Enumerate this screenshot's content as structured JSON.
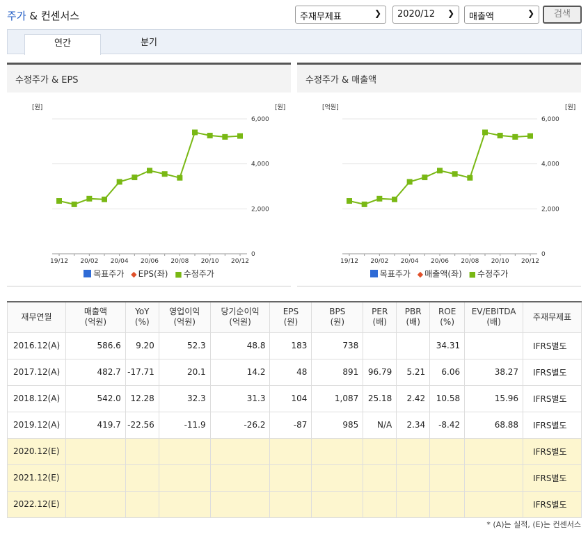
{
  "header": {
    "title_a": "주가",
    "title_b": " & 컨센서스",
    "select_type": "주재무제표",
    "select_period": "2020/12",
    "select_metric": "매출액",
    "search_label": "검색"
  },
  "tabs": [
    "연간",
    "분기"
  ],
  "colors": {
    "accent": "#1f5bc4",
    "target_price": "#2f6bd6",
    "eps_line": "#e0502a",
    "price_line": "#79b814"
  },
  "chart_data": [
    {
      "type": "line",
      "title": "수정주가 & EPS",
      "left_unit": "[원]",
      "right_unit": "[원]",
      "categories": [
        "19/12",
        "20/01",
        "20/02",
        "20/03",
        "20/04",
        "20/05",
        "20/06",
        "20/07",
        "20/08",
        "20/09",
        "20/10",
        "20/11",
        "20/12"
      ],
      "x_tick_labels": [
        "19/12",
        "20/02",
        "20/04",
        "20/06",
        "20/08",
        "20/10",
        "20/12"
      ],
      "y_ticks": [
        "6,000",
        "4,000",
        "2,000",
        "0"
      ],
      "ylim": [
        0,
        6000
      ],
      "series": [
        {
          "name": "수정주가",
          "axis": "right",
          "values": [
            2350,
            2200,
            2450,
            2420,
            3200,
            3400,
            3700,
            3550,
            3380,
            5400,
            5260,
            5200,
            5240
          ]
        }
      ],
      "legend": [
        "목표주가",
        "EPS(좌)",
        "수정주가"
      ]
    },
    {
      "type": "line",
      "title": "수정주가 & 매출액",
      "left_unit": "[억원]",
      "right_unit": "[원]",
      "categories": [
        "19/12",
        "20/01",
        "20/02",
        "20/03",
        "20/04",
        "20/05",
        "20/06",
        "20/07",
        "20/08",
        "20/09",
        "20/10",
        "20/11",
        "20/12"
      ],
      "x_tick_labels": [
        "19/12",
        "20/02",
        "20/04",
        "20/06",
        "20/08",
        "20/10",
        "20/12"
      ],
      "y_ticks": [
        "6,000",
        "4,000",
        "2,000",
        "0"
      ],
      "ylim": [
        0,
        6000
      ],
      "series": [
        {
          "name": "수정주가",
          "axis": "right",
          "values": [
            2350,
            2200,
            2450,
            2420,
            3200,
            3400,
            3700,
            3550,
            3380,
            5400,
            5260,
            5200,
            5240
          ]
        }
      ],
      "legend": [
        "목표주가",
        "매출액(좌)",
        "수정주가"
      ]
    }
  ],
  "table": {
    "headers": [
      [
        "재무연월"
      ],
      [
        "매출액",
        "(억원)"
      ],
      [
        "YoY",
        "(%)"
      ],
      [
        "영업이익",
        "(억원)"
      ],
      [
        "당기순이익",
        "(억원)"
      ],
      [
        "EPS",
        "(원)"
      ],
      [
        "BPS",
        "(원)"
      ],
      [
        "PER",
        "(배)"
      ],
      [
        "PBR",
        "(배)"
      ],
      [
        "ROE",
        "(%)"
      ],
      [
        "EV/EBITDA",
        "(배)"
      ],
      [
        "주재무제표"
      ]
    ],
    "rows": [
      [
        "2016.12(A)",
        "586.6",
        "9.20",
        "52.3",
        "48.8",
        "183",
        "738",
        "",
        "",
        "34.31",
        "",
        "IFRS별도"
      ],
      [
        "2017.12(A)",
        "482.7",
        "-17.71",
        "20.1",
        "14.2",
        "48",
        "891",
        "96.79",
        "5.21",
        "6.06",
        "38.27",
        "IFRS별도"
      ],
      [
        "2018.12(A)",
        "542.0",
        "12.28",
        "32.3",
        "31.3",
        "104",
        "1,087",
        "25.18",
        "2.42",
        "10.58",
        "15.96",
        "IFRS별도"
      ],
      [
        "2019.12(A)",
        "419.7",
        "-22.56",
        "-11.9",
        "-26.2",
        "-87",
        "985",
        "N/A",
        "2.34",
        "-8.42",
        "68.88",
        "IFRS별도"
      ],
      [
        "2020.12(E)",
        "",
        "",
        "",
        "",
        "",
        "",
        "",
        "",
        "",
        "",
        "IFRS별도"
      ],
      [
        "2021.12(E)",
        "",
        "",
        "",
        "",
        "",
        "",
        "",
        "",
        "",
        "",
        "IFRS별도"
      ],
      [
        "2022.12(E)",
        "",
        "",
        "",
        "",
        "",
        "",
        "",
        "",
        "",
        "",
        "IFRS별도"
      ]
    ]
  },
  "note": "* (A)는 실적, (E)는 컨센서스"
}
